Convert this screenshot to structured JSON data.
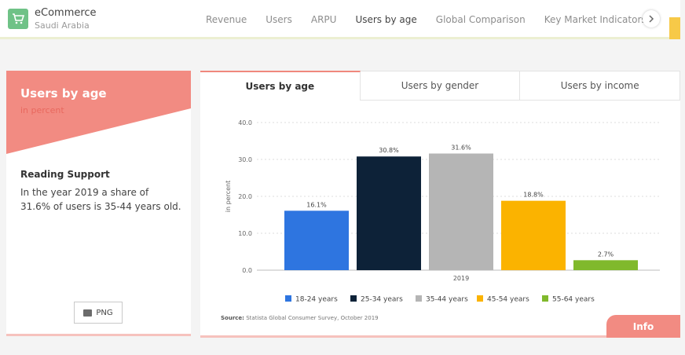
{
  "header": {
    "brand_title": "eCommerce",
    "brand_subtitle": "Saudi Arabia",
    "nav": [
      "Revenue",
      "Users",
      "ARPU",
      "Users by age",
      "Global Comparison",
      "Key Market Indicators"
    ],
    "active_nav": "Users by age",
    "accent_color": "#6fc287"
  },
  "left_panel": {
    "title": "Users by age",
    "subtitle": "in percent",
    "reading_title": "Reading Support",
    "reading_text": "In the year 2019 a share of 31.6% of users is 35-44 years old.",
    "png_label": "PNG",
    "header_color": "#f28b82"
  },
  "main_panel": {
    "tabs": [
      "Users by age",
      "Users by gender",
      "Users by income"
    ],
    "source_label": "Source:",
    "source_text": "Statista Global Consumer Survey, October 2019",
    "info_label": "Info"
  },
  "chart_data": {
    "type": "bar",
    "categories": [
      "2019"
    ],
    "series": [
      {
        "name": "18-24 years",
        "values": [
          16.1
        ],
        "color": "#2e75e0"
      },
      {
        "name": "25-34 years",
        "values": [
          30.8
        ],
        "color": "#0d2238"
      },
      {
        "name": "35-44 years",
        "values": [
          31.6
        ],
        "color": "#b5b5b5"
      },
      {
        "name": "45-54 years",
        "values": [
          18.8
        ],
        "color": "#fbb300"
      },
      {
        "name": "55-64 years",
        "values": [
          2.7
        ],
        "color": "#80b92c"
      }
    ],
    "data_labels": [
      "16.1%",
      "30.8%",
      "31.6%",
      "18.8%",
      "2.7%"
    ],
    "y_ticks": [
      "0.0",
      "10.0",
      "20.0",
      "30.0",
      "40.0"
    ],
    "ylabel": "in percent",
    "xlabel": "",
    "ylim": [
      0,
      40
    ],
    "grid": true,
    "legend_position": "bottom"
  }
}
